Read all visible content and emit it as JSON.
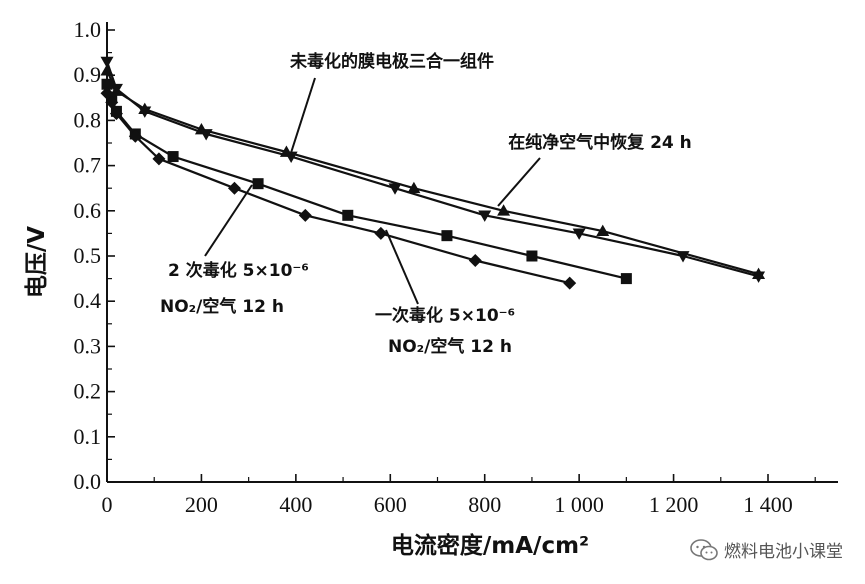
{
  "chart_data": {
    "type": "line",
    "xlabel": "电流密度/mA/cm²",
    "ylabel": "电压/V",
    "xlim": [
      0,
      1500
    ],
    "ylim": [
      0,
      1.0
    ],
    "x_ticks": [
      {
        "value": 0,
        "label": "0"
      },
      {
        "value": 200,
        "label": "200"
      },
      {
        "value": 400,
        "label": "400"
      },
      {
        "value": 600,
        "label": "600"
      },
      {
        "value": 800,
        "label": "800"
      },
      {
        "value": 1000,
        "label": "1 000"
      },
      {
        "value": 1200,
        "label": "1 200"
      },
      {
        "value": 1400,
        "label": "1 400"
      }
    ],
    "y_ticks": [
      {
        "value": 0.0,
        "label": "0.0"
      },
      {
        "value": 0.1,
        "label": "0.1"
      },
      {
        "value": 0.2,
        "label": "0.2"
      },
      {
        "value": 0.3,
        "label": "0.3"
      },
      {
        "value": 0.4,
        "label": "0.4"
      },
      {
        "value": 0.5,
        "label": "0.5"
      },
      {
        "value": 0.6,
        "label": "0.6"
      },
      {
        "value": 0.7,
        "label": "0.7"
      },
      {
        "value": 0.8,
        "label": "0.8"
      },
      {
        "value": 0.9,
        "label": "0.9"
      },
      {
        "value": 1.0,
        "label": "1.0"
      }
    ],
    "grid": false,
    "series": [
      {
        "name": "未毒化的膜电极三合一组件",
        "marker": "triangle-down",
        "x": [
          0,
          20,
          80,
          210,
          390,
          610,
          800,
          1000,
          1220,
          1380
        ],
        "y": [
          0.93,
          0.87,
          0.82,
          0.77,
          0.72,
          0.65,
          0.59,
          0.55,
          0.5,
          0.455
        ]
      },
      {
        "name": "在纯净空气中恢复24 h",
        "marker": "triangle-up",
        "x": [
          0,
          20,
          80,
          200,
          380,
          650,
          840,
          1050,
          1380
        ],
        "y": [
          0.91,
          0.865,
          0.825,
          0.78,
          0.73,
          0.65,
          0.6,
          0.555,
          0.46
        ]
      },
      {
        "name": "一次毒化 5×10⁻⁶ NO₂/空气 12 h",
        "marker": "square",
        "x": [
          0,
          10,
          20,
          60,
          140,
          320,
          510,
          720,
          900,
          1100
        ],
        "y": [
          0.88,
          0.85,
          0.82,
          0.77,
          0.72,
          0.66,
          0.59,
          0.545,
          0.5,
          0.45
        ]
      },
      {
        "name": "2次毒化 5×10⁻⁶ NO₂/空气 12 h",
        "marker": "diamond",
        "x": [
          0,
          10,
          20,
          60,
          110,
          270,
          420,
          580,
          780,
          980
        ],
        "y": [
          0.86,
          0.84,
          0.815,
          0.765,
          0.715,
          0.65,
          0.59,
          0.55,
          0.49,
          0.44
        ]
      }
    ],
    "annotations": [
      {
        "text": "未毒化的膜电极三合一组件"
      },
      {
        "text": "在纯净空气中恢复 24 h"
      },
      {
        "text": "2 次毒化 5×10⁻⁶"
      },
      {
        "text": "NO₂/空气 12 h"
      },
      {
        "text": "一次毒化 5×10⁻⁶"
      },
      {
        "text": "NO₂/空气 12 h"
      }
    ]
  },
  "watermark": {
    "text": "燃料电池小课堂",
    "icon": "wechat-icon"
  }
}
